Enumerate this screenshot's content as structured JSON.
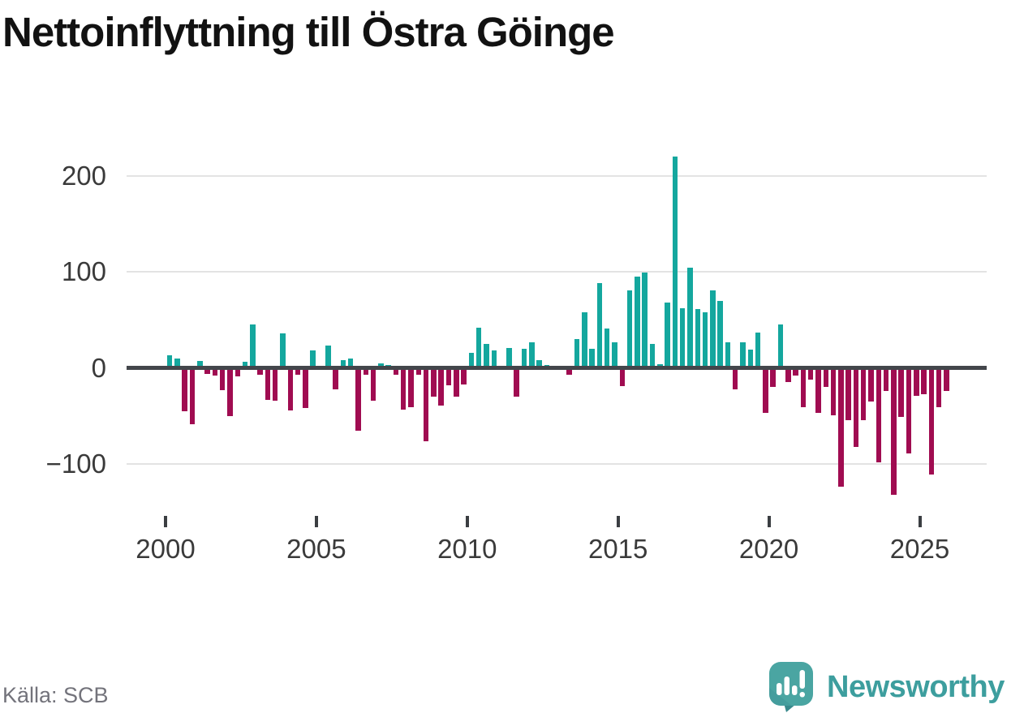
{
  "title": "Nettoinflyttning till Östra Göinge",
  "source": {
    "label": "Källa: SCB"
  },
  "branding": {
    "name": "Newsworthy",
    "icon": "newsworthy-speech-bubble-chart-icon",
    "icon_color": "#4aa5a2",
    "icon_shadow_color": "#38898c",
    "text_color": "#3d9e9e"
  },
  "colors": {
    "positive": "#14a79e",
    "negative": "#a00c51",
    "axis": "#43464b",
    "gridline": "#e3e3e3",
    "tick_label": "#3a3a3a",
    "source_text": "#73737b",
    "title_text": "#121212",
    "background": "#ffffff"
  },
  "chart_data": {
    "type": "bar",
    "title": "Nettoinflyttning till Östra Göinge",
    "frequency": "quarterly",
    "x_start": "2000-Q1",
    "x_end": "2025-Q4",
    "x_tick_labels": [
      "2000",
      "2005",
      "2010",
      "2015",
      "2020",
      "2025"
    ],
    "y_tick_labels": [
      "200",
      "100",
      "0",
      "−100"
    ],
    "y_gridlines": [
      200,
      100,
      0,
      -100
    ],
    "ylim": [
      -150,
      235
    ],
    "grid": "horizontal-only",
    "legend": "none",
    "xlabel": "",
    "ylabel": "",
    "positive_color": "#14a79e",
    "negative_color": "#a00c51",
    "values": [
      13,
      10,
      -45,
      -59,
      7,
      -6,
      -8,
      -23,
      -50,
      -9,
      6,
      45,
      -7,
      -33,
      -34,
      36,
      -44,
      -7,
      -42,
      18,
      0,
      23,
      -22,
      8,
      10,
      -65,
      -7,
      -34,
      5,
      3,
      -7,
      -43,
      -41,
      -7,
      -76,
      -30,
      -39,
      -18,
      -30,
      -17,
      16,
      42,
      25,
      18,
      0,
      21,
      -30,
      20,
      27,
      8,
      3,
      0,
      0,
      -7,
      30,
      58,
      20,
      88,
      41,
      27,
      -19,
      81,
      95,
      99,
      25,
      4,
      68,
      220,
      62,
      104,
      61,
      58,
      81,
      70,
      27,
      -22,
      27,
      19,
      37,
      -47,
      -20,
      45,
      -15,
      -8,
      -41,
      -12,
      -47,
      -20,
      -49,
      -124,
      -54,
      -82,
      -54,
      -35,
      -98,
      -24,
      -132,
      -51,
      -89,
      -29,
      -27,
      -111,
      -41,
      -24
    ]
  }
}
